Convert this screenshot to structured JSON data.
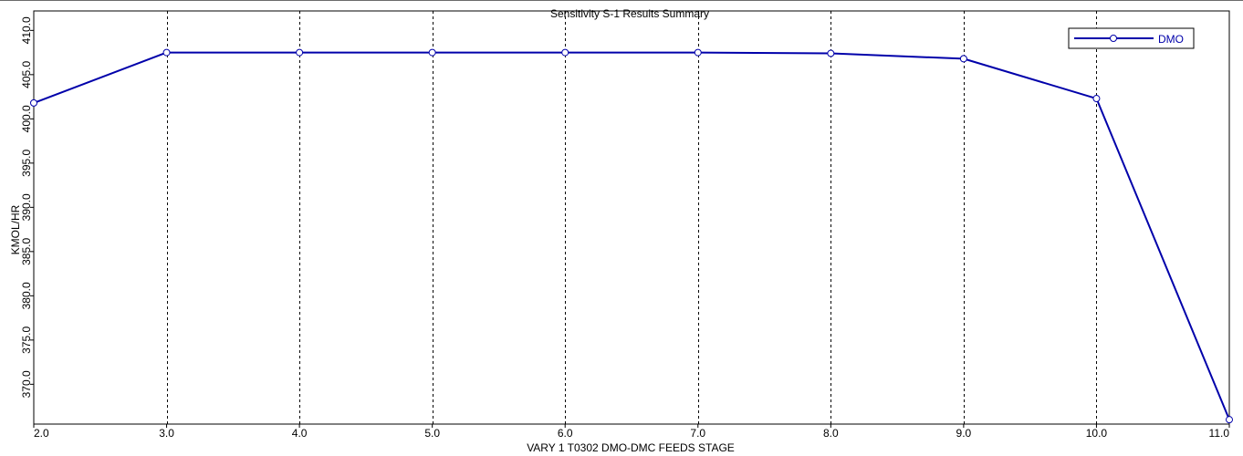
{
  "chart_data": {
    "type": "line",
    "title": "Sensitivity S-1 Results Summary",
    "xlabel": "VARY   1 T0302 DMO-DMC FEEDS STAGE",
    "ylabel": "KMOL/HR",
    "x": [
      2.0,
      3.0,
      4.0,
      5.0,
      6.0,
      7.0,
      8.0,
      9.0,
      10.0,
      11.0
    ],
    "x_tick_labels": [
      "2.0",
      "3.0",
      "4.0",
      "5.0",
      "6.0",
      "7.0",
      "8.0",
      "9.0",
      "10.0",
      "11.0"
    ],
    "y_tick_values": [
      370,
      375,
      380,
      385,
      390,
      395,
      400,
      405,
      410
    ],
    "y_tick_labels": [
      "370.0",
      "375.0",
      "380.0",
      "385.0",
      "390.0",
      "395.0",
      "400.0",
      "405.0",
      "410.0"
    ],
    "xlim": [
      2.0,
      11.0
    ],
    "ylim": [
      365.5,
      412.2
    ],
    "grid": "vertical dashed",
    "legend_position": "top-right",
    "series": [
      {
        "name": "DMO",
        "color": "#0000aa",
        "values": [
          401.8,
          407.5,
          407.5,
          407.5,
          407.5,
          407.5,
          407.4,
          406.8,
          402.3,
          366.0
        ]
      }
    ]
  }
}
